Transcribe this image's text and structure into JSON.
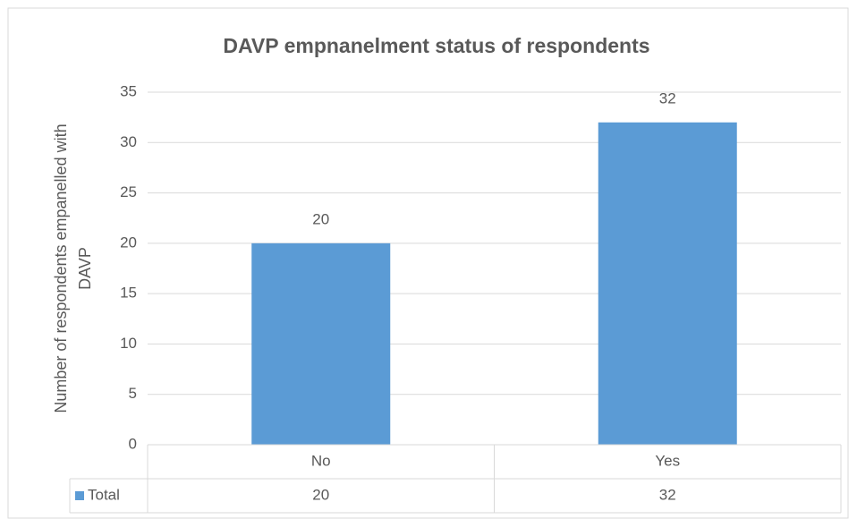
{
  "chart_data": {
    "type": "bar",
    "title": "DAVP empnanelment status of respondents",
    "ylabel": "Number of respondents empanelled with DAVP",
    "categories": [
      "No",
      "Yes"
    ],
    "series": [
      {
        "name": "Total",
        "color": "#5b9bd5",
        "values": [
          20,
          32
        ]
      }
    ],
    "ylim": [
      0,
      35
    ],
    "yticks": [
      0,
      5,
      10,
      15,
      20,
      25,
      30,
      35
    ],
    "grid": true,
    "data_table": true
  }
}
